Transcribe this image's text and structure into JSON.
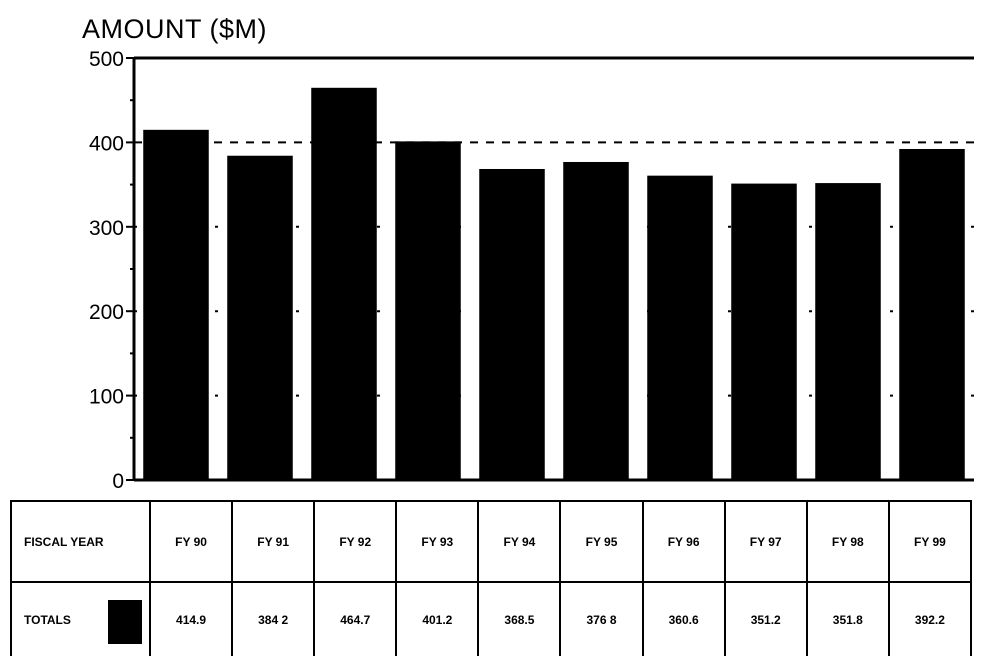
{
  "chart_data": {
    "type": "bar",
    "title": "AMOUNT ($M)",
    "xlabel": "",
    "ylabel": "",
    "ylim": [
      0,
      500
    ],
    "yticks": [
      0,
      100,
      200,
      300,
      400,
      500
    ],
    "reference_line": 400,
    "categories": [
      "FY 90",
      "FY 91",
      "FY 92",
      "FY 93",
      "FY 94",
      "FY 95",
      "FY 96",
      "FY 97",
      "FY 98",
      "FY 99"
    ],
    "value_labels": [
      "414.9",
      "384 2",
      "464.7",
      "401.2",
      "368.5",
      "376 8",
      "360.6",
      "351.2",
      "351.8",
      "392.2"
    ],
    "series": [
      {
        "name": "TOTALS",
        "color": "#000000",
        "values": [
          414.9,
          384.2,
          464.7,
          401.2,
          368.5,
          376.8,
          360.6,
          351.2,
          351.8,
          392.2
        ]
      }
    ],
    "grid": "dashed horizontal at 100-unit intervals",
    "table": {
      "row_header_x": "FISCAL YEAR",
      "row_header_values": "TOTALS"
    }
  }
}
